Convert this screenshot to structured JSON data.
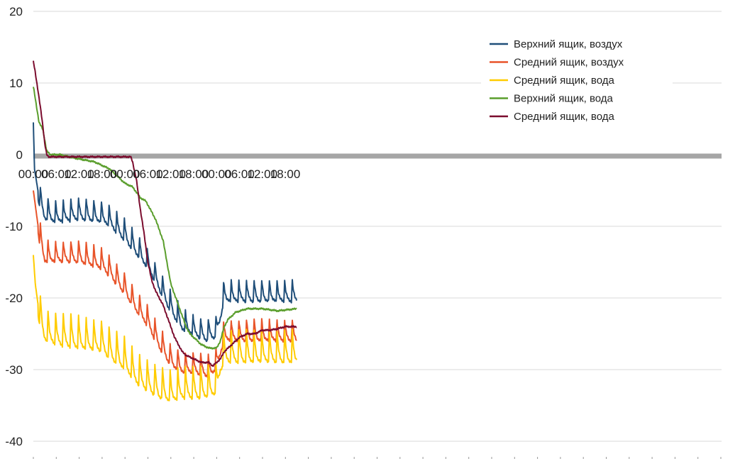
{
  "chart_data": {
    "type": "line",
    "title": "",
    "xlabel": "",
    "ylabel": "",
    "ylim": [
      -40,
      20
    ],
    "yticks": [
      "20",
      "10",
      "0",
      "-10",
      "-20",
      "-30",
      "-40"
    ],
    "x_unit": "hours",
    "xlim": [
      0,
      69
    ],
    "x_tick_labels": [
      "00:00",
      "06:00",
      "12:00",
      "18:00",
      "00:00",
      "06:00",
      "12:00",
      "18:00",
      "00:00",
      "06:00",
      "12:00",
      "18:00"
    ],
    "x_tick_hours": [
      0,
      6,
      12,
      18,
      24,
      30,
      36,
      42,
      48,
      54,
      60,
      66
    ],
    "grid": true,
    "legend_position": "top-right",
    "series": [
      {
        "name": "Верхний ящик, воздух",
        "color": "#1F4E79",
        "pattern": {
          "type": "sawtooth",
          "amplitude": 3,
          "period": 2
        },
        "base_points": [
          [
            0,
            4.5
          ],
          [
            0.3,
            -2
          ],
          [
            1.5,
            -6
          ],
          [
            3,
            -8
          ],
          [
            6,
            -8.5
          ],
          [
            12,
            -8
          ],
          [
            18,
            -8.5
          ],
          [
            20,
            -9
          ],
          [
            24,
            -11
          ],
          [
            27,
            -13
          ],
          [
            30,
            -15
          ],
          [
            33,
            -18
          ],
          [
            36,
            -21
          ],
          [
            39,
            -23.5
          ],
          [
            45,
            -25
          ],
          [
            48,
            -24.5
          ],
          [
            49,
            -22
          ],
          [
            50,
            -19.5
          ],
          [
            69,
            -19.5
          ]
        ]
      },
      {
        "name": "Средний ящик, воздух",
        "color": "#E8542A",
        "pattern": {
          "type": "sawtooth",
          "amplitude": 3,
          "period": 2
        },
        "base_points": [
          [
            0,
            -5
          ],
          [
            0.5,
            -7
          ],
          [
            1.5,
            -11
          ],
          [
            3,
            -14
          ],
          [
            6,
            -14
          ],
          [
            12,
            -14
          ],
          [
            18,
            -15
          ],
          [
            20,
            -16
          ],
          [
            24,
            -18.5
          ],
          [
            27,
            -21
          ],
          [
            30,
            -23
          ],
          [
            33,
            -26
          ],
          [
            36,
            -28.5
          ],
          [
            39,
            -29.5
          ],
          [
            42,
            -29.5
          ],
          [
            46,
            -30
          ],
          [
            48,
            -29
          ],
          [
            49,
            -27
          ],
          [
            50,
            -25
          ],
          [
            69,
            -25
          ]
        ]
      },
      {
        "name": "Средний ящик, вода",
        "color": "#FFCC00",
        "pattern": {
          "type": "sawtooth",
          "amplitude": 4.5,
          "period": 2
        },
        "base_points": [
          [
            0,
            -14
          ],
          [
            0.5,
            -18
          ],
          [
            1.5,
            -22
          ],
          [
            3,
            -24.5
          ],
          [
            6,
            -25
          ],
          [
            12,
            -25.5
          ],
          [
            18,
            -26
          ],
          [
            20,
            -27
          ],
          [
            24,
            -28.5
          ],
          [
            27,
            -30.5
          ],
          [
            30,
            -31.5
          ],
          [
            33,
            -32.5
          ],
          [
            36,
            -33
          ],
          [
            39,
            -32.5
          ],
          [
            44,
            -32.5
          ],
          [
            48,
            -32
          ],
          [
            49,
            -29
          ],
          [
            50,
            -27.5
          ],
          [
            69,
            -27.5
          ]
        ]
      },
      {
        "name": "Верхний ящик, вода",
        "color": "#5A9E2C",
        "pattern": {
          "type": "smooth"
        },
        "base_points": [
          [
            0,
            9.5
          ],
          [
            0.6,
            7.5
          ],
          [
            1.5,
            4.5
          ],
          [
            2.5,
            3.5
          ],
          [
            3.5,
            0.5
          ],
          [
            4.5,
            0
          ],
          [
            7,
            0
          ],
          [
            11,
            -0.5
          ],
          [
            16,
            -1
          ],
          [
            18,
            -1.5
          ],
          [
            20,
            -2
          ],
          [
            22,
            -3
          ],
          [
            24,
            -4
          ],
          [
            26,
            -4.5
          ],
          [
            28,
            -6
          ],
          [
            29.5,
            -6.5
          ],
          [
            31,
            -8
          ],
          [
            32,
            -9
          ],
          [
            33,
            -10.5
          ],
          [
            34,
            -12
          ],
          [
            35,
            -15
          ],
          [
            36,
            -18
          ],
          [
            37,
            -19.5
          ],
          [
            38,
            -21
          ],
          [
            39,
            -22.5
          ],
          [
            40,
            -24
          ],
          [
            41,
            -25
          ],
          [
            42,
            -25.5
          ],
          [
            43,
            -26
          ],
          [
            44,
            -26.5
          ],
          [
            46,
            -27
          ],
          [
            48,
            -27
          ],
          [
            49,
            -26
          ],
          [
            50,
            -24
          ],
          [
            51,
            -23
          ],
          [
            53,
            -22
          ],
          [
            56,
            -21.5
          ],
          [
            60,
            -21.5
          ],
          [
            64,
            -21.8
          ],
          [
            69,
            -21.5
          ]
        ]
      },
      {
        "name": "Средний ящик, вода",
        "color": "#7B0C2E",
        "pattern": {
          "type": "smooth"
        },
        "base_points": [
          [
            0,
            13
          ],
          [
            0.5,
            11.5
          ],
          [
            1.2,
            9
          ],
          [
            2,
            6
          ],
          [
            2.5,
            4
          ],
          [
            3,
            1.5
          ],
          [
            3.5,
            0
          ],
          [
            4,
            -0.3
          ],
          [
            8,
            -0.3
          ],
          [
            12,
            -0.3
          ],
          [
            18,
            -0.3
          ],
          [
            24,
            -0.3
          ],
          [
            25.5,
            -0.3
          ],
          [
            26,
            -1
          ],
          [
            27,
            -3.5
          ],
          [
            28,
            -7.5
          ],
          [
            29,
            -11
          ],
          [
            30,
            -15
          ],
          [
            31,
            -17.5
          ],
          [
            32,
            -19
          ],
          [
            33,
            -20
          ],
          [
            34,
            -21
          ],
          [
            35,
            -22.5
          ],
          [
            36,
            -24
          ],
          [
            37,
            -25.5
          ],
          [
            38,
            -26.5
          ],
          [
            39,
            -27.5
          ],
          [
            40,
            -28
          ],
          [
            42,
            -28.5
          ],
          [
            44,
            -29
          ],
          [
            46,
            -29
          ],
          [
            47,
            -29.5
          ],
          [
            48,
            -29
          ],
          [
            49,
            -28.5
          ],
          [
            50,
            -27.5
          ],
          [
            51,
            -27
          ],
          [
            52,
            -26.5
          ],
          [
            53,
            -26
          ],
          [
            54,
            -25.5
          ],
          [
            56,
            -25
          ],
          [
            58,
            -25
          ],
          [
            60,
            -24.5
          ],
          [
            62,
            -24.5
          ],
          [
            64,
            -24.3
          ],
          [
            66,
            -24
          ],
          [
            69,
            -24
          ]
        ]
      }
    ]
  }
}
